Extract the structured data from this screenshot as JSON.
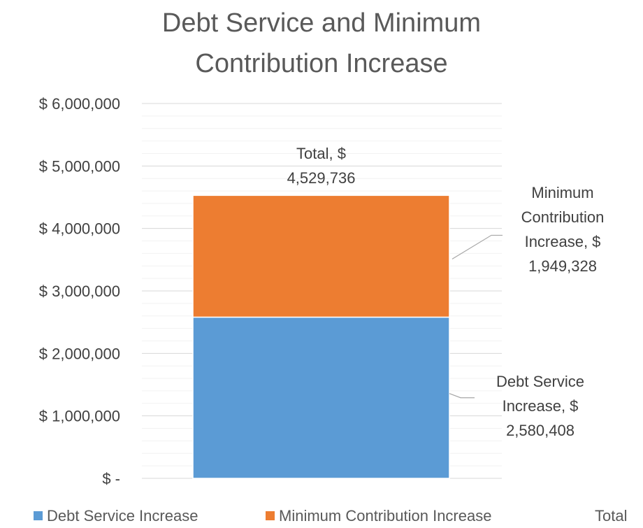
{
  "chart_data": {
    "type": "bar",
    "stacked": true,
    "title_lines": [
      "Debt Service and Minimum",
      "Contribution Increase"
    ],
    "categories": [
      ""
    ],
    "series": [
      {
        "name": "Debt Service Increase",
        "values": [
          2580408
        ],
        "color": "#5B9BD5",
        "label_lines": [
          "Debt Service",
          "Increase, $",
          "2,580,408"
        ]
      },
      {
        "name": "Minimum Contribution Increase",
        "values": [
          1949328
        ],
        "color": "#ED7D31",
        "label_lines": [
          "Minimum",
          "Contribution",
          "Increase, $",
          "1,949,328"
        ]
      }
    ],
    "total": {
      "name": "Total",
      "value": 4529736,
      "label_lines": [
        "Total, $",
        "4,529,736"
      ]
    },
    "ylim": [
      0,
      6000000
    ],
    "yticks": [
      0,
      1000000,
      2000000,
      3000000,
      4000000,
      5000000,
      6000000
    ],
    "ytick_labels": [
      "$ -",
      "$ 1,000,000",
      "$ 2,000,000",
      "$ 3,000,000",
      "$ 4,000,000",
      "$ 5,000,000",
      "$ 6,000,000"
    ],
    "grid": true,
    "legend": {
      "placement": "bottom",
      "items": [
        "Debt Service Increase",
        "Minimum Contribution Increase",
        "Total"
      ]
    }
  }
}
